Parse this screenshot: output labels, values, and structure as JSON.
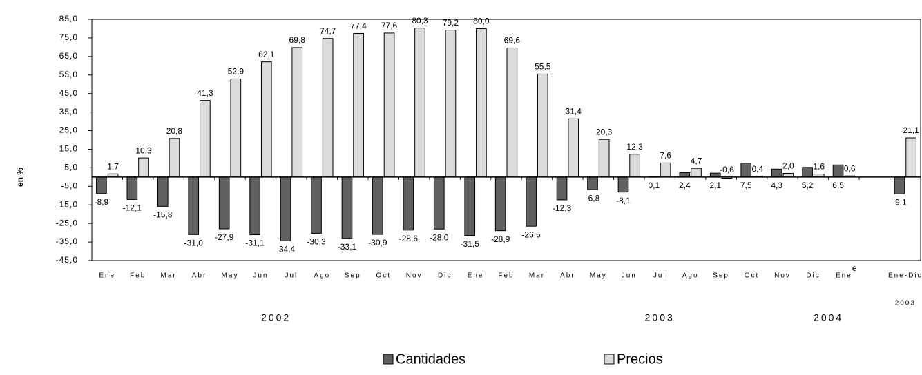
{
  "chart_data": {
    "type": "bar",
    "y_label": "en %",
    "categories": [
      "Ene",
      "Feb",
      "Mar",
      "Abr",
      "May",
      "Jun",
      "Jul",
      "Ago",
      "Sep",
      "Oct",
      "Nov",
      "Dic",
      "Ene",
      "Feb",
      "Mar",
      "Abr",
      "May",
      "Jun",
      "Jul",
      "Ago",
      "Sep",
      "Oct",
      "Nov",
      "Dic",
      "Ene",
      null,
      "Ene-Dic"
    ],
    "category_note": "e",
    "year_labels": [
      "2002",
      "2003",
      "2004",
      "2003"
    ],
    "series": [
      {
        "name": "Cantidades",
        "color": "#606060",
        "values": [
          -8.9,
          -12.1,
          -15.8,
          -31.0,
          -27.9,
          -31.1,
          -34.4,
          -30.3,
          -33.1,
          -30.9,
          -28.6,
          -28.0,
          -31.5,
          -28.9,
          -26.5,
          -12.3,
          -6.8,
          -8.1,
          0.1,
          2.4,
          2.1,
          7.5,
          4.3,
          5.2,
          6.5,
          null,
          -9.1
        ],
        "value_labels": [
          "-8,9",
          "-12,1",
          "-15,8",
          "-31,0",
          "-27,9",
          "-31,1",
          "-34,4",
          "-30,3",
          "-33,1",
          "-30,9",
          "-28,6",
          "-28,0",
          "-31,5",
          "-28,9",
          "-26,5",
          "-12,3",
          "-6,8",
          "-8,1",
          "0,1",
          "2,4",
          "2,1",
          "7,5",
          "4,3",
          "5,2",
          "6,5",
          null,
          "-9,1"
        ]
      },
      {
        "name": "Precios",
        "color": "#dcdcdc",
        "values": [
          1.7,
          10.3,
          20.8,
          41.3,
          52.9,
          62.1,
          69.8,
          74.7,
          77.4,
          77.6,
          80.3,
          79.2,
          80.0,
          69.6,
          55.5,
          31.4,
          20.3,
          12.3,
          7.6,
          4.7,
          -0.6,
          0.4,
          2.0,
          1.6,
          0.6,
          null,
          21.1
        ],
        "value_labels": [
          "1,7",
          "10,3",
          "20,8",
          "41,3",
          "52,9",
          "62,1",
          "69,8",
          "74,7",
          "77,4",
          "77,6",
          "80,3",
          "79,2",
          "80,0",
          "69,6",
          "55,5",
          "31,4",
          "20,3",
          "12,3",
          "7,6",
          "4,7",
          "-0,6",
          "0,4",
          "2,0",
          "1,6",
          "0,6",
          null,
          "21,1"
        ]
      }
    ],
    "ylim": [
      -45,
      85
    ],
    "yticks": [
      {
        "value": 85,
        "label": "85,0"
      },
      {
        "value": 75,
        "label": "75,0"
      },
      {
        "value": 65,
        "label": "65,0"
      },
      {
        "value": 55,
        "label": "55,0"
      },
      {
        "value": 45,
        "label": "45,0"
      },
      {
        "value": 35,
        "label": "35,0"
      },
      {
        "value": 25,
        "label": "25,0"
      },
      {
        "value": 15,
        "label": "15,0"
      },
      {
        "value": 5,
        "label": "5,0"
      },
      {
        "value": -5,
        "label": "-5,0"
      },
      {
        "value": -15,
        "label": "-15,0"
      },
      {
        "value": -25,
        "label": "-25,0"
      },
      {
        "value": -35,
        "label": "-35,0"
      },
      {
        "value": -45,
        "label": "-45,0"
      }
    ],
    "grid": false,
    "legend": "bottom"
  }
}
